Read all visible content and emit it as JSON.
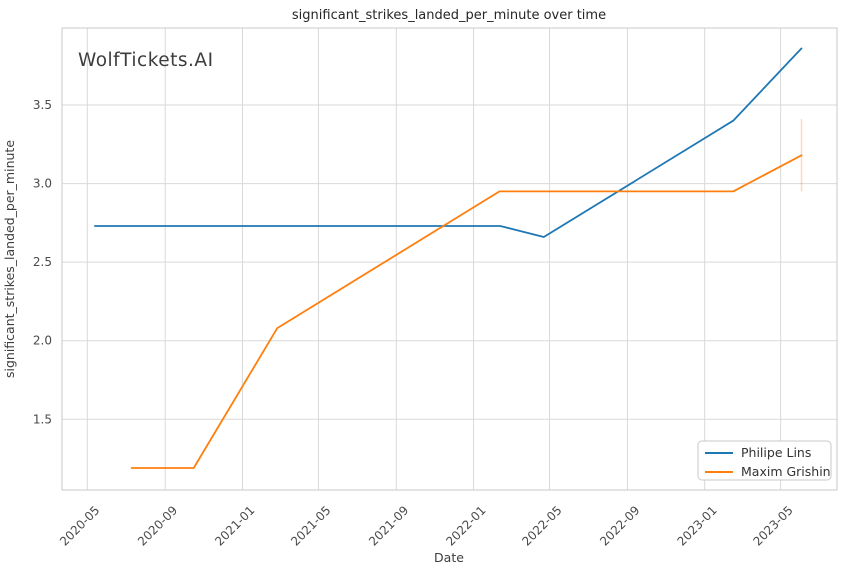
{
  "watermark": "WolfTickets.AI",
  "chart_data": {
    "type": "line",
    "title": "significant_strikes_landed_per_minute over time",
    "xlabel": "Date",
    "ylabel": "significant_strikes_landed_per_minute",
    "x_domain": [
      "2020-03-22",
      "2023-07-29"
    ],
    "y_domain": [
      1.05,
      3.99
    ],
    "x_ticks": [
      {
        "label": "2020-05",
        "date": "2020-05-01"
      },
      {
        "label": "2020-09",
        "date": "2020-09-01"
      },
      {
        "label": "2021-01",
        "date": "2021-01-01"
      },
      {
        "label": "2021-05",
        "date": "2021-05-01"
      },
      {
        "label": "2021-09",
        "date": "2021-09-01"
      },
      {
        "label": "2022-01",
        "date": "2022-01-01"
      },
      {
        "label": "2022-05",
        "date": "2022-05-01"
      },
      {
        "label": "2022-09",
        "date": "2022-09-01"
      },
      {
        "label": "2023-01",
        "date": "2023-01-01"
      },
      {
        "label": "2023-05",
        "date": "2023-05-01"
      }
    ],
    "y_ticks": [
      1.5,
      2.0,
      2.5,
      3.0,
      3.5
    ],
    "grid": true,
    "legend_position": "lower right",
    "series": [
      {
        "name": "Philipe Lins",
        "color": "#1f77b4",
        "points": [
          {
            "date": "2020-05-13",
            "value": 2.73
          },
          {
            "date": "2022-02-12",
            "value": 2.73
          },
          {
            "date": "2022-04-22",
            "value": 2.66
          },
          {
            "date": "2023-02-15",
            "value": 3.4
          },
          {
            "date": "2023-06-03",
            "value": 3.86
          }
        ]
      },
      {
        "name": "Maxim Grishin",
        "color": "#ff7f0e",
        "points": [
          {
            "date": "2020-07-10",
            "value": 1.19
          },
          {
            "date": "2020-10-16",
            "value": 1.19
          },
          {
            "date": "2021-02-25",
            "value": 2.08
          },
          {
            "date": "2022-02-11",
            "value": 2.95
          },
          {
            "date": "2023-02-15",
            "value": 2.95
          },
          {
            "date": "2023-06-03",
            "value": 3.18
          }
        ],
        "error_bar": {
          "date": "2023-06-03",
          "y_low": 2.95,
          "y_high": 3.41
        }
      }
    ]
  },
  "legend": {
    "items": [
      {
        "label": "Philipe Lins",
        "color": "#1f77b4"
      },
      {
        "label": "Maxim Grishin",
        "color": "#ff7f0e"
      }
    ]
  },
  "style": {
    "grid_color": "#d9d9d9",
    "spine_color": "#c9c9c9",
    "watermark_color": "#cdcdcd",
    "background": "#ffffff",
    "series_line_width": 1.8
  }
}
